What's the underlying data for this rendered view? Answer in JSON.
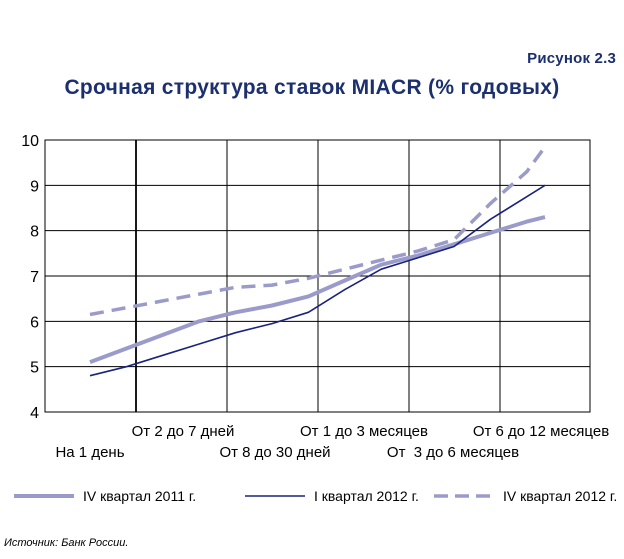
{
  "figure_label": "Рисунок 2.3",
  "chart_data": {
    "type": "line",
    "title": "Срочная структура ставок MIACR (% годовых)",
    "xlabel": "",
    "ylabel": "",
    "categories": [
      "На 1 день",
      "От 2 до 7 дней",
      "От 8 до 30 дней",
      "От 1 до 3 месяцев",
      "От  3 до 6 месяцев",
      "От 6 до 12 месяцев"
    ],
    "ylim": [
      4,
      10
    ],
    "yticks": [
      4,
      5,
      6,
      7,
      8,
      9,
      10
    ],
    "grid": true,
    "legend_position": "bottom",
    "series": [
      {
        "name": "IV квартал 2011 г.",
        "color": "#9b9bcb",
        "style": "solid-thick",
        "x": [
          0,
          0.4,
          0.8,
          1.2,
          1.6,
          2.0,
          2.4,
          2.8,
          3.2,
          3.6,
          4.0,
          4.4,
          4.8,
          5.0
        ],
        "values": [
          5.1,
          5.4,
          5.7,
          6.0,
          6.2,
          6.35,
          6.55,
          6.9,
          7.25,
          7.45,
          7.7,
          7.95,
          8.2,
          8.3
        ]
      },
      {
        "name": "I квартал 2012 г.",
        "color": "#1a237e",
        "style": "solid-thin",
        "x": [
          0,
          0.4,
          0.8,
          1.2,
          1.6,
          2.0,
          2.4,
          2.8,
          3.2,
          3.6,
          4.0,
          4.4,
          4.8,
          5.0
        ],
        "values": [
          4.8,
          5.0,
          5.25,
          5.5,
          5.75,
          5.95,
          6.2,
          6.7,
          7.15,
          7.4,
          7.65,
          8.25,
          8.75,
          9.0
        ]
      },
      {
        "name": "IV квартал 2012 г.",
        "color": "#9b9bcb",
        "style": "dashed",
        "x": [
          0,
          0.4,
          0.8,
          1.2,
          1.6,
          2.0,
          2.4,
          2.8,
          3.2,
          3.6,
          4.0,
          4.4,
          4.8,
          5.0
        ],
        "values": [
          6.15,
          6.3,
          6.45,
          6.6,
          6.75,
          6.8,
          6.95,
          7.15,
          7.35,
          7.55,
          7.8,
          8.6,
          9.3,
          9.85
        ]
      }
    ]
  },
  "source": "Источник: Банк России."
}
